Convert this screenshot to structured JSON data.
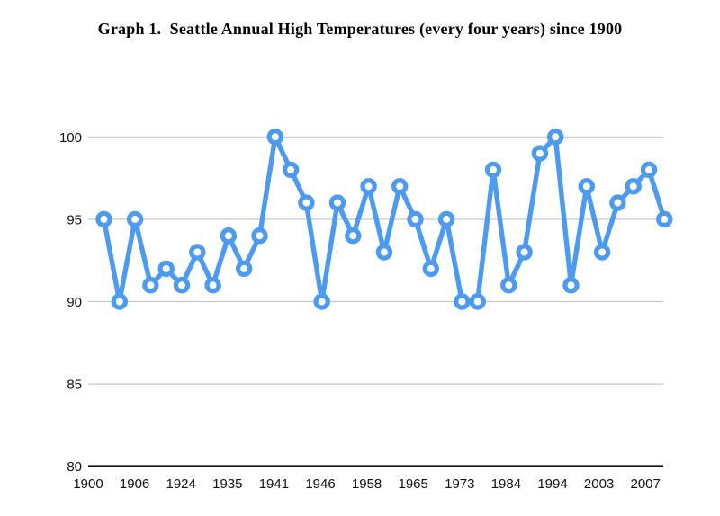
{
  "chart_data": {
    "type": "line",
    "title": "Graph 1.  Seattle Annual High Temperatures (every four years) since 1900",
    "xlabel": "",
    "ylabel": "",
    "x_tick_labels": [
      "1900",
      "1906",
      "1924",
      "1935",
      "1941",
      "1946",
      "1958",
      "1965",
      "1973",
      "1984",
      "1994",
      "2003",
      "2007"
    ],
    "y_tick_values": [
      80,
      85,
      90,
      95,
      100
    ],
    "ylim": [
      80,
      100
    ],
    "grid": true,
    "legend_position": "none",
    "marker": "open-circle",
    "values": [
      95,
      90,
      95,
      91,
      92,
      91,
      93,
      91,
      94,
      92,
      94,
      100,
      98,
      96,
      90,
      96,
      94,
      97,
      93,
      97,
      95,
      92,
      95,
      90,
      90,
      98,
      91,
      93,
      99,
      100,
      91,
      97,
      93,
      96,
      97,
      98,
      95
    ],
    "colors": {
      "line": "#4c9bf0",
      "marker_fill": "#ffffff",
      "gridline": "#c7c7c7",
      "axis": "#141414",
      "text": "#111111",
      "background": "#ffffff"
    }
  }
}
